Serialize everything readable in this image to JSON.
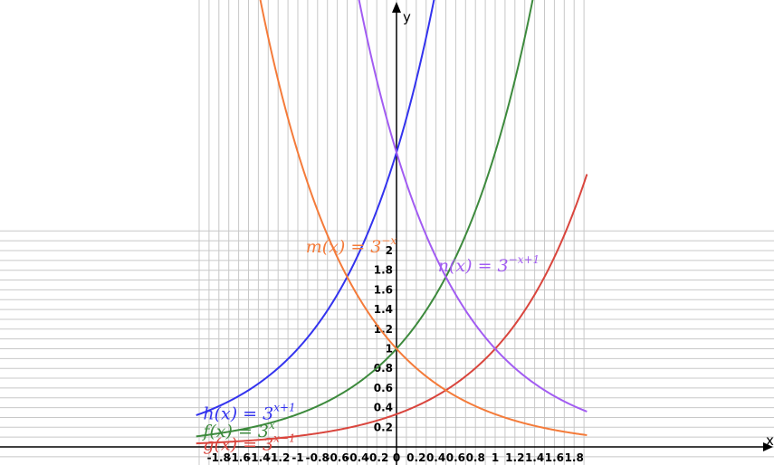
{
  "chart_data": {
    "type": "line",
    "title": "",
    "xlabel": "x",
    "ylabel": "y",
    "xlim": [
      -1.98,
      1.88
    ],
    "ylim": [
      -0.12,
      2.2
    ],
    "grid": true,
    "x_ticks": [
      -1.8,
      -1.6,
      -1.4,
      -1.2,
      -1,
      -0.8,
      -0.6,
      -0.4,
      -0.2,
      0,
      0.2,
      0.4,
      0.6,
      0.8,
      1,
      1.2,
      1.4,
      1.6,
      1.8
    ],
    "x_tick_labels": [
      "-1.8",
      "-1.6",
      "-1.4",
      "-1.2",
      "-1",
      "-0.8",
      "-0.6",
      "-0.4",
      "-0.2",
      "0",
      "0.2",
      "0.4",
      "0.6",
      "0.8",
      "1",
      "1.2",
      "1.4",
      "1.6",
      "1.8"
    ],
    "y_ticks": [
      0.2,
      0.4,
      0.6,
      0.8,
      1,
      1.2,
      1.4,
      1.6,
      1.8,
      2
    ],
    "y_tick_labels": [
      "0.2",
      "0.4",
      "0.6",
      "0.8",
      "1",
      "1.2",
      "1.4",
      "1.6",
      "1.8",
      "2"
    ],
    "series": [
      {
        "name": "f",
        "label_base": "f(x)  =  3",
        "label_exp": "x",
        "color": "#3d8a3d",
        "base": 3,
        "exp_coef": 1,
        "exp_const": 0,
        "label_at": [
          -1.96,
          0.1
        ]
      },
      {
        "name": "g",
        "label_base": "g(x)  =  3",
        "label_exp": "x−1",
        "color": "#d9453d",
        "base": 3,
        "exp_coef": 1,
        "exp_const": -1,
        "label_at": [
          -1.96,
          -0.03
        ]
      },
      {
        "name": "h",
        "label_base": "h(x)  =  3",
        "label_exp": "x+1",
        "color": "#3333ee",
        "base": 3,
        "exp_coef": 1,
        "exp_const": 1,
        "label_at": [
          -1.96,
          0.28
        ]
      },
      {
        "name": "m",
        "label_base": "m(x)  =  3",
        "label_exp": "−x",
        "color": "#f47b3a",
        "base": 3,
        "exp_coef": -1,
        "exp_const": 0,
        "label_at": [
          -0.92,
          1.98
        ]
      },
      {
        "name": "n",
        "label_base": "n(x)  =  3",
        "label_exp": "−x+1",
        "color": "#a25cf2",
        "base": 3,
        "exp_coef": -1,
        "exp_const": 1,
        "label_at": [
          0.42,
          1.79
        ]
      }
    ]
  }
}
